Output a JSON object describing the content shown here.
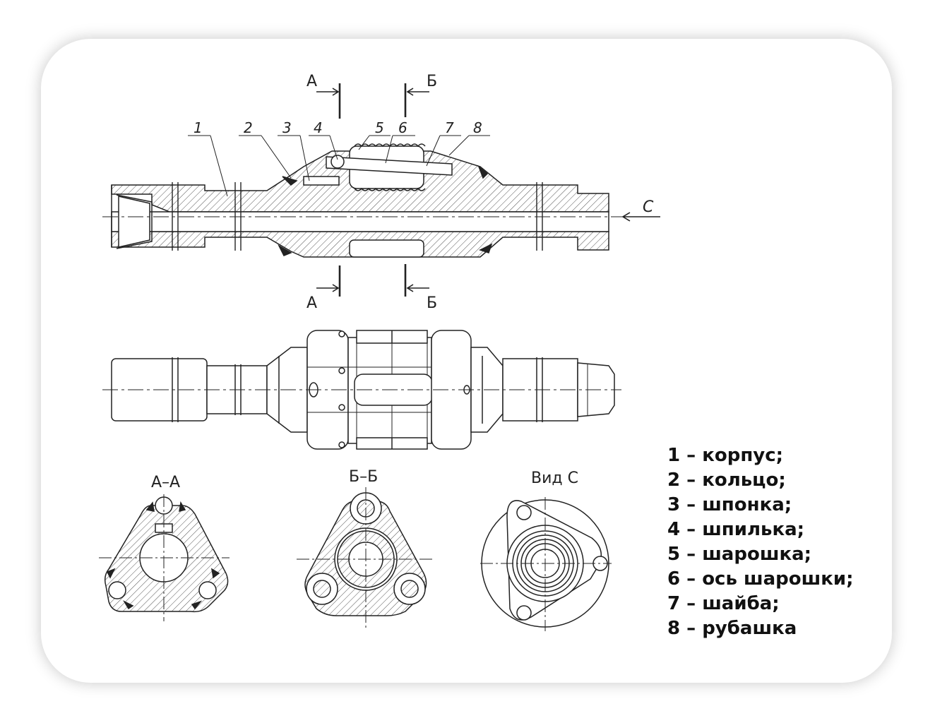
{
  "section_marks": {
    "a": "А",
    "b": "Б",
    "c": "С"
  },
  "part_numbers": [
    "1",
    "2",
    "3",
    "4",
    "5",
    "6",
    "7",
    "8"
  ],
  "view_titles": {
    "aa": "А–А",
    "bb": "Б–Б",
    "c": "Вид С"
  },
  "legend": [
    "1 – корпус;",
    "2 – кольцо;",
    "3 – шпонка;",
    "4 – шпилька;",
    "5 – шарошка;",
    "6 – ось шарошки;",
    "7 – шайба;",
    "8 – рубашка"
  ]
}
